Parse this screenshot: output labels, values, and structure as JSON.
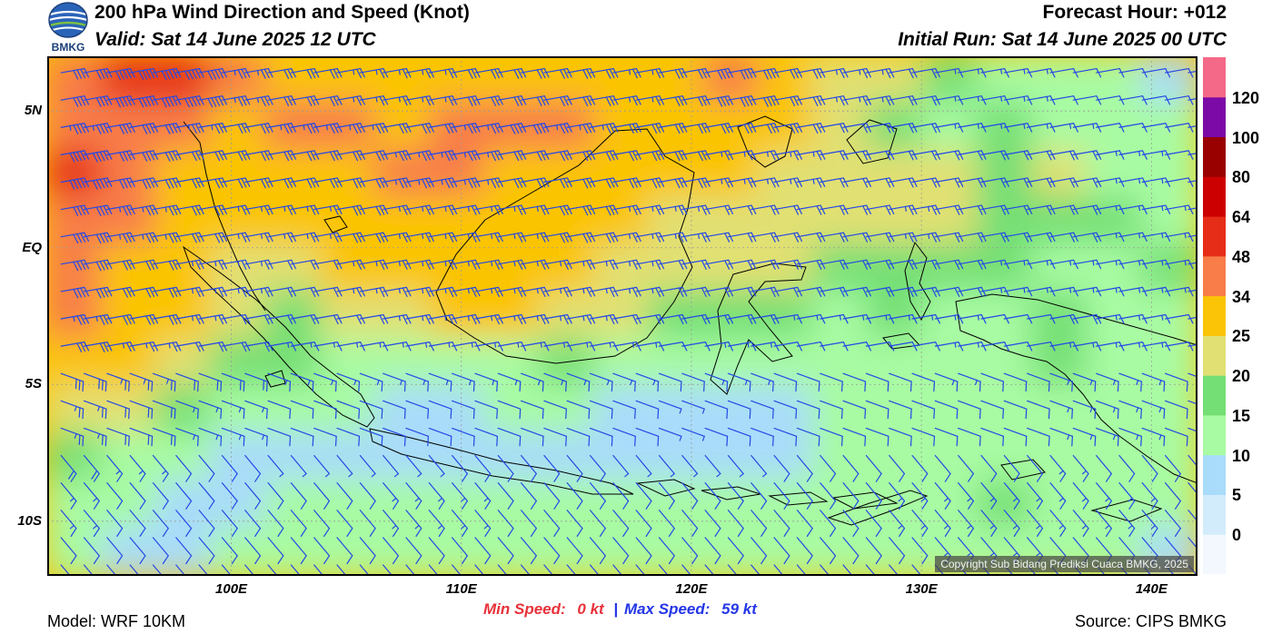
{
  "header": {
    "logo_text": "BMKG",
    "title": "200 hPa Wind Direction and Speed (Knot)",
    "valid": "Valid: Sat 14 June 2025 12 UTC",
    "forecast_hour": "Forecast Hour: +012",
    "initial_run": "Initial Run: Sat 14 June 2025 00 UTC"
  },
  "chart_data": {
    "type": "heatmap",
    "title": "200 hPa Wind Direction and Speed (Knot)",
    "field": "wind speed (kt) with wind barbs",
    "x_ticks": [
      {
        "label": "100E",
        "lon": 100
      },
      {
        "label": "110E",
        "lon": 110
      },
      {
        "label": "120E",
        "lon": 120
      },
      {
        "label": "130E",
        "lon": 130
      },
      {
        "label": "140E",
        "lon": 140
      }
    ],
    "y_ticks": [
      {
        "label": "5N",
        "lat": 5
      },
      {
        "label": "EQ",
        "lat": 0
      },
      {
        "label": "5S",
        "lat": -5
      },
      {
        "label": "10S",
        "lat": -10
      }
    ],
    "xlim": [
      92,
      142
    ],
    "ylim": [
      -12,
      7
    ],
    "grid": true,
    "colorbar": {
      "levels": [
        "0",
        "5",
        "10",
        "15",
        "20",
        "25",
        "34",
        "48",
        "64",
        "80",
        "100",
        "120"
      ],
      "colors": [
        "#f2f8fe",
        "#d2ecfb",
        "#a9dcfa",
        "#a8fba3",
        "#74df74",
        "#e1e073",
        "#fbc406",
        "#f87d49",
        "#e62d18",
        "#cc0000",
        "#990000",
        "#7b0aa6",
        "#f46987"
      ]
    },
    "speed_field_kt": [
      [
        40,
        48,
        52,
        34,
        32,
        26,
        26,
        28,
        30,
        28,
        26,
        28,
        38,
        30,
        24,
        22,
        16,
        14,
        12,
        10,
        8
      ],
      [
        44,
        40,
        34,
        30,
        36,
        34,
        30,
        34,
        38,
        36,
        32,
        30,
        30,
        28,
        22,
        18,
        14,
        16,
        14,
        12,
        10
      ],
      [
        48,
        38,
        30,
        28,
        30,
        32,
        36,
        34,
        30,
        28,
        30,
        28,
        26,
        24,
        22,
        20,
        22,
        18,
        20,
        14,
        12
      ],
      [
        42,
        36,
        28,
        26,
        26,
        28,
        26,
        26,
        26,
        28,
        26,
        24,
        22,
        20,
        22,
        24,
        20,
        18,
        18,
        16,
        14
      ],
      [
        38,
        32,
        26,
        24,
        22,
        26,
        26,
        26,
        26,
        26,
        24,
        20,
        20,
        20,
        18,
        18,
        18,
        16,
        14,
        14,
        16
      ],
      [
        34,
        30,
        26,
        20,
        18,
        20,
        24,
        26,
        26,
        24,
        20,
        18,
        18,
        16,
        14,
        16,
        14,
        12,
        18,
        14,
        12
      ],
      [
        30,
        26,
        22,
        18,
        16,
        14,
        14,
        14,
        14,
        16,
        14,
        12,
        14,
        12,
        12,
        12,
        14,
        12,
        16,
        14,
        12
      ],
      [
        24,
        20,
        16,
        14,
        10,
        10,
        8,
        8,
        10,
        10,
        8,
        6,
        8,
        8,
        10,
        12,
        12,
        12,
        14,
        14,
        12
      ],
      [
        18,
        14,
        10,
        8,
        6,
        6,
        6,
        8,
        8,
        8,
        6,
        6,
        6,
        8,
        10,
        10,
        12,
        12,
        14,
        12,
        12
      ],
      [
        14,
        10,
        8,
        8,
        10,
        12,
        14,
        14,
        12,
        10,
        10,
        10,
        10,
        10,
        12,
        14,
        14,
        16,
        14,
        14,
        12
      ],
      [
        10,
        8,
        8,
        10,
        12,
        12,
        10,
        10,
        10,
        12,
        10,
        10,
        10,
        12,
        12,
        12,
        14,
        14,
        12,
        10,
        8
      ]
    ],
    "barb_spacing_deg": 1,
    "min_speed": "0 kt",
    "max_speed": "59 kt"
  },
  "stats": {
    "min_label": "Min Speed:",
    "min_value": "0 kt",
    "separator": "|",
    "max_label": "Max Speed:",
    "max_value": "59 kt"
  },
  "footer": {
    "model": "Model: WRF 10KM",
    "source": "Source: CIPS BMKG",
    "copyright": "Copyright Sub Bidang Prediksi Cuaca BMKG, 2025"
  },
  "colors": {
    "barb": "#2448e6",
    "coast": "#000000",
    "min_speed": "#e8313a",
    "max_speed": "#2536e6",
    "grid": "#9a9a9a"
  }
}
